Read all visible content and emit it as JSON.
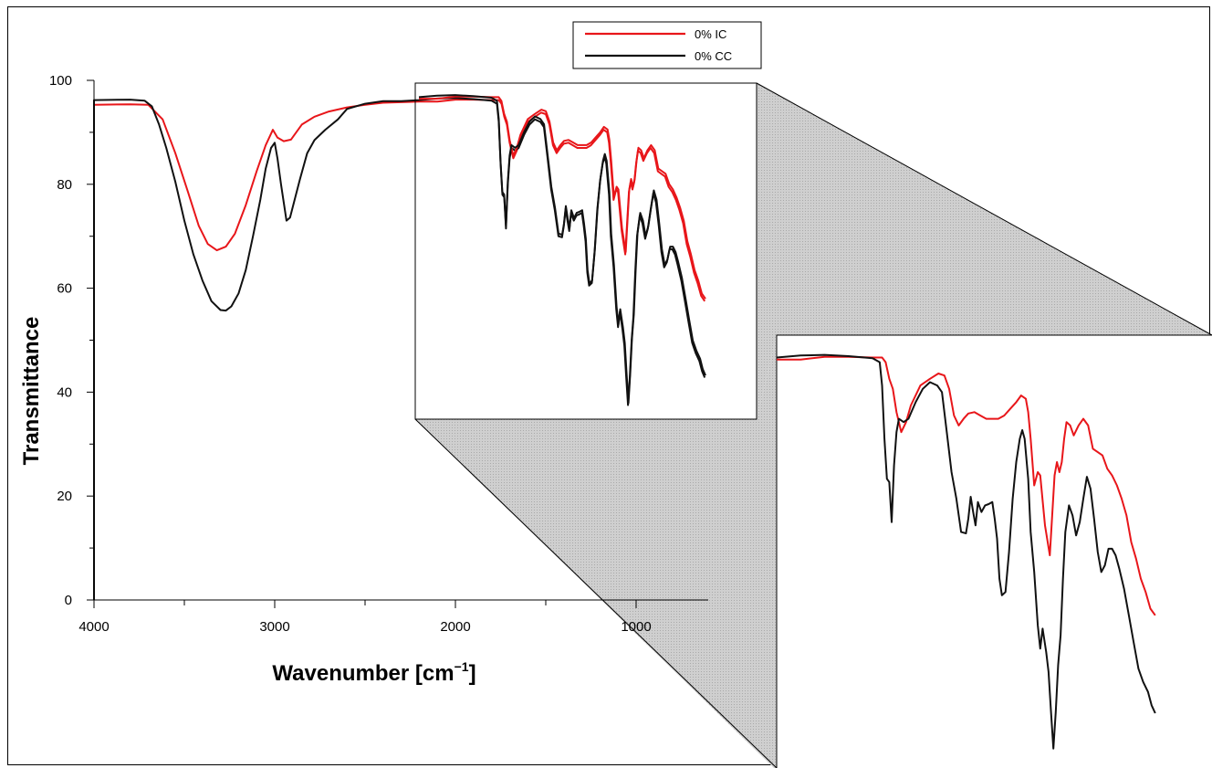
{
  "chart_data": {
    "type": "line",
    "xlabel": "Wavenumber [cm",
    "xlabel_sup": "−1",
    "xlabel_close": "]",
    "ylabel": "Transmittance",
    "xlim": [
      4000,
      600
    ],
    "ylim": [
      0,
      100
    ],
    "x_reversed": true,
    "x_ticks": [
      4000,
      3000,
      2000,
      1000
    ],
    "x_tick_labels": [
      "4000",
      "3000",
      "2000",
      "1000"
    ],
    "y_ticks": [
      0,
      20,
      40,
      60,
      80,
      100
    ],
    "y_tick_labels": [
      "0",
      "20",
      "40",
      "60",
      "80",
      "100"
    ],
    "legend_position": "top-center",
    "grid": false,
    "inset": {
      "description_x_range": [
        2200,
        600
      ],
      "x_range": [
        2200,
        600
      ]
    },
    "series": [
      {
        "name": "0% IC",
        "color": "#e8161a",
        "points": [
          [
            4000,
            95.3
          ],
          [
            3800,
            95.4
          ],
          [
            3700,
            95.3
          ],
          [
            3620,
            92.5
          ],
          [
            3550,
            86
          ],
          [
            3480,
            78.5
          ],
          [
            3420,
            72
          ],
          [
            3370,
            68.5
          ],
          [
            3320,
            67.3
          ],
          [
            3270,
            68
          ],
          [
            3220,
            70.5
          ],
          [
            3160,
            76
          ],
          [
            3100,
            82.5
          ],
          [
            3050,
            87.5
          ],
          [
            3010,
            90.5
          ],
          [
            2985,
            89
          ],
          [
            2950,
            88.3
          ],
          [
            2910,
            88.6
          ],
          [
            2850,
            91.5
          ],
          [
            2780,
            93
          ],
          [
            2700,
            94
          ],
          [
            2600,
            94.8
          ],
          [
            2500,
            95.3
          ],
          [
            2400,
            95.7
          ],
          [
            2300,
            95.8
          ],
          [
            2200,
            95.9
          ],
          [
            2100,
            95.9
          ],
          [
            2000,
            96.3
          ],
          [
            1900,
            96.3
          ],
          [
            1800,
            96.2
          ],
          [
            1760,
            96.2
          ],
          [
            1745,
            95.5
          ],
          [
            1730,
            93
          ],
          [
            1715,
            91.5
          ],
          [
            1700,
            88
          ],
          [
            1680,
            85
          ],
          [
            1660,
            86.5
          ],
          [
            1640,
            89
          ],
          [
            1600,
            92
          ],
          [
            1560,
            93
          ],
          [
            1525,
            93.8
          ],
          [
            1500,
            93.5
          ],
          [
            1480,
            91.5
          ],
          [
            1460,
            87.5
          ],
          [
            1440,
            86
          ],
          [
            1420,
            87
          ],
          [
            1400,
            87.8
          ],
          [
            1375,
            88
          ],
          [
            1350,
            87.5
          ],
          [
            1325,
            87
          ],
          [
            1300,
            87
          ],
          [
            1275,
            87
          ],
          [
            1250,
            87.5
          ],
          [
            1225,
            88.5
          ],
          [
            1200,
            89.5
          ],
          [
            1180,
            90.5
          ],
          [
            1160,
            90
          ],
          [
            1150,
            88
          ],
          [
            1140,
            84
          ],
          [
            1125,
            77
          ],
          [
            1110,
            79
          ],
          [
            1100,
            78.5
          ],
          [
            1080,
            71
          ],
          [
            1060,
            66.5
          ],
          [
            1040,
            78.5
          ],
          [
            1030,
            80.5
          ],
          [
            1020,
            79
          ],
          [
            1010,
            80.5
          ],
          [
            1000,
            84
          ],
          [
            990,
            86.5
          ],
          [
            975,
            86
          ],
          [
            960,
            84.5
          ],
          [
            940,
            86
          ],
          [
            920,
            87
          ],
          [
            900,
            86
          ],
          [
            880,
            82.5
          ],
          [
            860,
            82
          ],
          [
            840,
            81.5
          ],
          [
            820,
            79.5
          ],
          [
            800,
            78.5
          ],
          [
            780,
            77
          ],
          [
            760,
            75
          ],
          [
            740,
            72.5
          ],
          [
            720,
            68.5
          ],
          [
            700,
            66
          ],
          [
            680,
            63
          ],
          [
            660,
            61
          ],
          [
            640,
            58.5
          ],
          [
            620,
            57.5
          ]
        ]
      },
      {
        "name": "0% CC",
        "color": "#111111",
        "points": [
          [
            4000,
            96.2
          ],
          [
            3800,
            96.3
          ],
          [
            3720,
            96.1
          ],
          [
            3680,
            95
          ],
          [
            3640,
            91.5
          ],
          [
            3600,
            87
          ],
          [
            3550,
            80.5
          ],
          [
            3500,
            73
          ],
          [
            3450,
            66.5
          ],
          [
            3400,
            61.5
          ],
          [
            3350,
            57.5
          ],
          [
            3300,
            55.8
          ],
          [
            3270,
            55.7
          ],
          [
            3240,
            56.5
          ],
          [
            3200,
            59
          ],
          [
            3160,
            63.5
          ],
          [
            3120,
            70
          ],
          [
            3080,
            77
          ],
          [
            3050,
            83
          ],
          [
            3020,
            87
          ],
          [
            3000,
            88
          ],
          [
            2985,
            85
          ],
          [
            2965,
            80
          ],
          [
            2950,
            76.5
          ],
          [
            2935,
            73
          ],
          [
            2915,
            73.6
          ],
          [
            2890,
            77
          ],
          [
            2860,
            81
          ],
          [
            2820,
            86
          ],
          [
            2780,
            88.5
          ],
          [
            2720,
            90.5
          ],
          [
            2650,
            92.5
          ],
          [
            2600,
            94.5
          ],
          [
            2500,
            95.5
          ],
          [
            2400,
            96
          ],
          [
            2300,
            96
          ],
          [
            2200,
            96.2
          ],
          [
            2100,
            96.5
          ],
          [
            2000,
            96.6
          ],
          [
            1900,
            96.4
          ],
          [
            1800,
            96.1
          ],
          [
            1770,
            95.5
          ],
          [
            1760,
            92
          ],
          [
            1750,
            84
          ],
          [
            1740,
            78
          ],
          [
            1730,
            77.5
          ],
          [
            1720,
            71.5
          ],
          [
            1710,
            80
          ],
          [
            1700,
            85
          ],
          [
            1690,
            87
          ],
          [
            1670,
            86.5
          ],
          [
            1650,
            87
          ],
          [
            1620,
            89.5
          ],
          [
            1590,
            91.5
          ],
          [
            1560,
            92.5
          ],
          [
            1530,
            92
          ],
          [
            1510,
            91
          ],
          [
            1490,
            85
          ],
          [
            1470,
            79
          ],
          [
            1450,
            75
          ],
          [
            1430,
            70
          ],
          [
            1410,
            69.8
          ],
          [
            1400,
            72
          ],
          [
            1390,
            75.3
          ],
          [
            1380,
            73
          ],
          [
            1370,
            71
          ],
          [
            1360,
            74.5
          ],
          [
            1345,
            73
          ],
          [
            1330,
            74
          ],
          [
            1315,
            74.2
          ],
          [
            1300,
            74.5
          ],
          [
            1290,
            72
          ],
          [
            1280,
            69
          ],
          [
            1270,
            63
          ],
          [
            1260,
            60.5
          ],
          [
            1245,
            61
          ],
          [
            1230,
            67
          ],
          [
            1215,
            75
          ],
          [
            1200,
            80.5
          ],
          [
            1185,
            84
          ],
          [
            1175,
            85.3
          ],
          [
            1165,
            84
          ],
          [
            1150,
            78
          ],
          [
            1140,
            70
          ],
          [
            1125,
            64
          ],
          [
            1110,
            56
          ],
          [
            1100,
            52.5
          ],
          [
            1090,
            55.5
          ],
          [
            1075,
            52
          ],
          [
            1065,
            49
          ],
          [
            1055,
            43
          ],
          [
            1045,
            37.5
          ],
          [
            1035,
            43
          ],
          [
            1025,
            50
          ],
          [
            1015,
            54.5
          ],
          [
            1005,
            63
          ],
          [
            995,
            70
          ],
          [
            980,
            74
          ],
          [
            965,
            72.5
          ],
          [
            950,
            69.5
          ],
          [
            935,
            71.5
          ],
          [
            920,
            75
          ],
          [
            905,
            78.3
          ],
          [
            890,
            76.5
          ],
          [
            875,
            72
          ],
          [
            860,
            67
          ],
          [
            845,
            64
          ],
          [
            830,
            65
          ],
          [
            815,
            67.5
          ],
          [
            800,
            67.5
          ],
          [
            785,
            66.5
          ],
          [
            770,
            64.5
          ],
          [
            750,
            61.5
          ],
          [
            730,
            57.5
          ],
          [
            710,
            53.5
          ],
          [
            690,
            49.5
          ],
          [
            670,
            47.5
          ],
          [
            650,
            46
          ],
          [
            635,
            44
          ],
          [
            620,
            42.8
          ]
        ]
      }
    ]
  }
}
